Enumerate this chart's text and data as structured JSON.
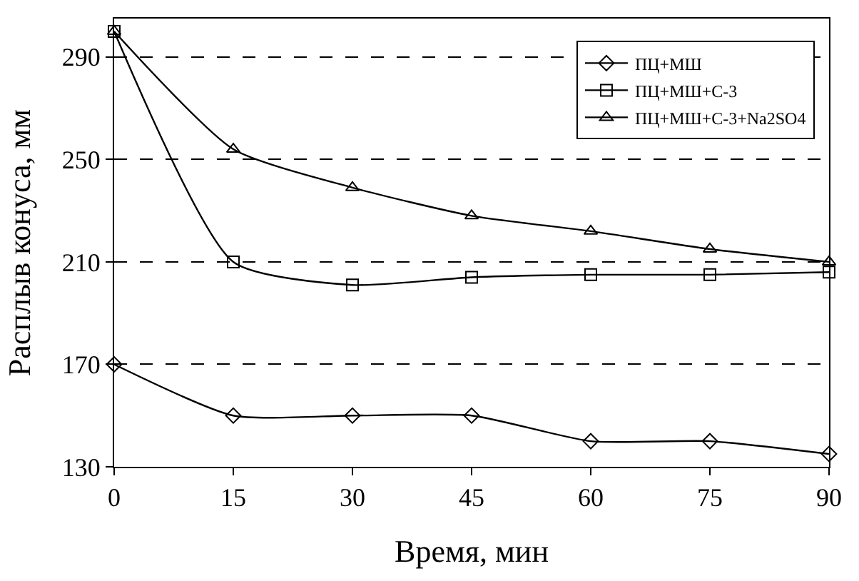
{
  "chart_data": {
    "type": "line",
    "xlabel": "Время, мин",
    "ylabel": "Расплыв конуса, мм",
    "x": [
      0,
      15,
      30,
      45,
      60,
      75,
      90
    ],
    "series": [
      {
        "name": "ПЦ+МШ",
        "color": "#000000",
        "marker": "diamond",
        "values": [
          170,
          150,
          150,
          150,
          140,
          140,
          135
        ]
      },
      {
        "name": "ПЦ+МШ+С-3",
        "color": "#000000",
        "marker": "square",
        "values": [
          300,
          210,
          201,
          204,
          205,
          205,
          206
        ]
      },
      {
        "name": "ПЦ+МШ+С-3+Na2SO4",
        "color": "#000000",
        "marker": "triangle",
        "values": [
          300,
          254,
          239,
          228,
          222,
          215,
          210
        ]
      }
    ],
    "xlim": [
      0,
      90
    ],
    "xticks": [
      0,
      15,
      30,
      45,
      60,
      75,
      90
    ],
    "ylim": [
      130,
      305
    ],
    "yticks": [
      130,
      170,
      210,
      250,
      290
    ],
    "grid": "y",
    "legend": "top right",
    "line_style": "solid"
  }
}
